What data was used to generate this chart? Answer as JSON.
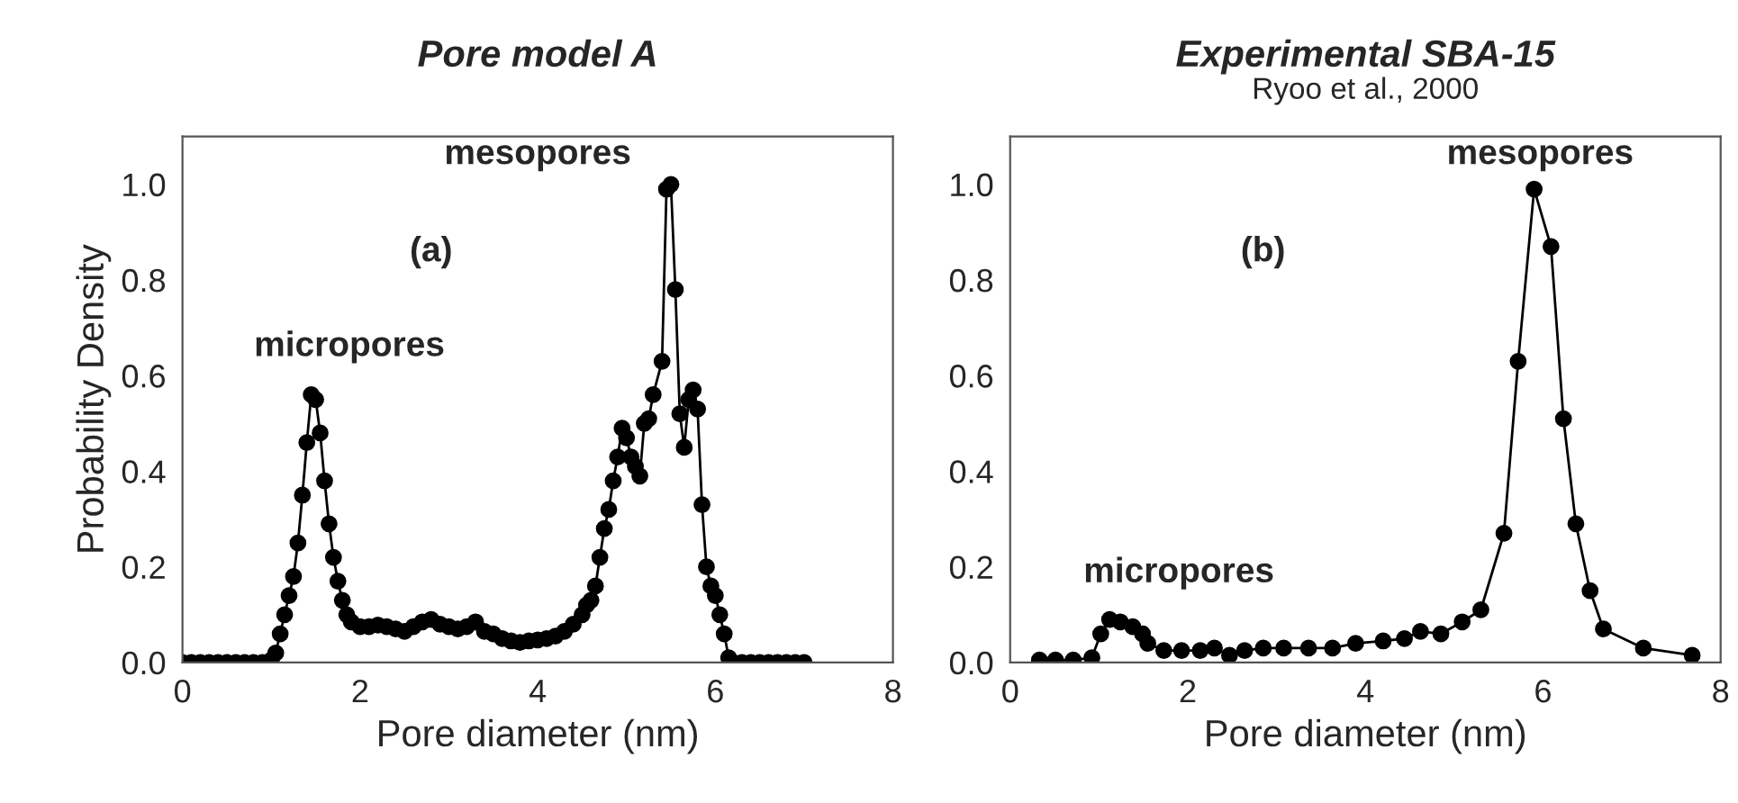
{
  "chart_data": [
    {
      "type": "line",
      "title": "Pore model A",
      "xlabel": "Pore diameter (nm)",
      "ylabel": "Probability Density",
      "marker": "circle",
      "line_style": "solid",
      "grid": false,
      "xlim": [
        0,
        8
      ],
      "xticks": [
        0,
        2,
        4,
        6,
        8
      ],
      "ylim": [
        0,
        1.1
      ],
      "yticks": [
        {
          "value": 0,
          "label": "0.0"
        },
        {
          "value": 0.2,
          "label": "0.2"
        },
        {
          "value": 0.4,
          "label": "0.4"
        },
        {
          "value": 0.6,
          "label": "0.6"
        },
        {
          "value": 0.8,
          "label": "0.8"
        },
        {
          "value": 1.0,
          "label": "1.0"
        }
      ],
      "annotations": [
        "(a)",
        "micropores",
        "mesopores"
      ],
      "series": [
        {
          "color": "#000000",
          "x": [
            0,
            0.1,
            0.2,
            0.3,
            0.4,
            0.5,
            0.6,
            0.7,
            0.8,
            0.9,
            1.0,
            1.05,
            1.1,
            1.15,
            1.2,
            1.25,
            1.3,
            1.35,
            1.4,
            1.45,
            1.5,
            1.55,
            1.6,
            1.65,
            1.7,
            1.75,
            1.8,
            1.85,
            1.9,
            2.0,
            2.1,
            2.2,
            2.3,
            2.4,
            2.5,
            2.6,
            2.7,
            2.8,
            2.9,
            3.0,
            3.1,
            3.2,
            3.3,
            3.4,
            3.5,
            3.6,
            3.7,
            3.8,
            3.9,
            4.0,
            4.1,
            4.2,
            4.3,
            4.4,
            4.5,
            4.55,
            4.6,
            4.65,
            4.7,
            4.75,
            4.8,
            4.85,
            4.9,
            4.95,
            5.0,
            5.05,
            5.1,
            5.15,
            5.2,
            5.25,
            5.3,
            5.4,
            5.45,
            5.5,
            5.55,
            5.6,
            5.65,
            5.7,
            5.75,
            5.8,
            5.85,
            5.9,
            5.95,
            6.0,
            6.05,
            6.1,
            6.15,
            6.2,
            6.3,
            6.4,
            6.5,
            6.6,
            6.7,
            6.8,
            6.9,
            7.0
          ],
          "values": [
            0,
            0,
            0,
            0,
            0,
            0,
            0,
            0,
            0,
            0,
            0.005,
            0.02,
            0.06,
            0.1,
            0.14,
            0.18,
            0.25,
            0.35,
            0.46,
            0.56,
            0.55,
            0.48,
            0.38,
            0.29,
            0.22,
            0.17,
            0.13,
            0.1,
            0.085,
            0.075,
            0.075,
            0.078,
            0.075,
            0.07,
            0.065,
            0.075,
            0.085,
            0.09,
            0.08,
            0.075,
            0.07,
            0.075,
            0.085,
            0.065,
            0.06,
            0.05,
            0.045,
            0.042,
            0.045,
            0.047,
            0.05,
            0.055,
            0.065,
            0.08,
            0.1,
            0.12,
            0.13,
            0.16,
            0.22,
            0.28,
            0.32,
            0.38,
            0.43,
            0.49,
            0.47,
            0.43,
            0.41,
            0.39,
            0.5,
            0.51,
            0.56,
            0.63,
            0.99,
            1.0,
            0.78,
            0.52,
            0.45,
            0.55,
            0.57,
            0.53,
            0.33,
            0.2,
            0.16,
            0.14,
            0.1,
            0.06,
            0.01,
            0,
            0,
            0,
            0,
            0,
            0,
            0,
            0,
            0
          ]
        }
      ]
    },
    {
      "type": "line",
      "title": "Experimental SBA-15",
      "subtitle": "Ryoo et al., 2000",
      "xlabel": "Pore diameter (nm)",
      "marker": "circle",
      "line_style": "solid",
      "grid": false,
      "xlim": [
        0,
        8
      ],
      "xticks": [
        0,
        2,
        4,
        6,
        8
      ],
      "ylim": [
        0,
        1.1
      ],
      "yticks": [
        {
          "value": 0,
          "label": "0.0"
        },
        {
          "value": 0.2,
          "label": "0.2"
        },
        {
          "value": 0.4,
          "label": "0.4"
        },
        {
          "value": 0.6,
          "label": "0.6"
        },
        {
          "value": 0.8,
          "label": "0.8"
        },
        {
          "value": 1.0,
          "label": "1.0"
        }
      ],
      "annotations": [
        "(b)",
        "micropores",
        "mesopores"
      ],
      "series": [
        {
          "color": "#000000",
          "x": [
            0.33,
            0.51,
            0.71,
            0.92,
            1.02,
            1.12,
            1.24,
            1.38,
            1.49,
            1.55,
            1.73,
            1.93,
            2.14,
            2.3,
            2.47,
            2.64,
            2.85,
            3.08,
            3.36,
            3.63,
            3.89,
            4.2,
            4.44,
            4.62,
            4.85,
            5.09,
            5.3,
            5.56,
            5.72,
            5.9,
            6.09,
            6.23,
            6.37,
            6.53,
            6.68,
            7.13,
            7.68
          ],
          "values": [
            0.005,
            0.005,
            0.005,
            0.01,
            0.06,
            0.09,
            0.085,
            0.075,
            0.06,
            0.04,
            0.025,
            0.025,
            0.025,
            0.03,
            0.015,
            0.025,
            0.03,
            0.03,
            0.03,
            0.03,
            0.04,
            0.045,
            0.05,
            0.065,
            0.06,
            0.085,
            0.11,
            0.27,
            0.63,
            0.99,
            0.87,
            0.51,
            0.29,
            0.15,
            0.07,
            0.03,
            0.015
          ]
        }
      ]
    }
  ]
}
